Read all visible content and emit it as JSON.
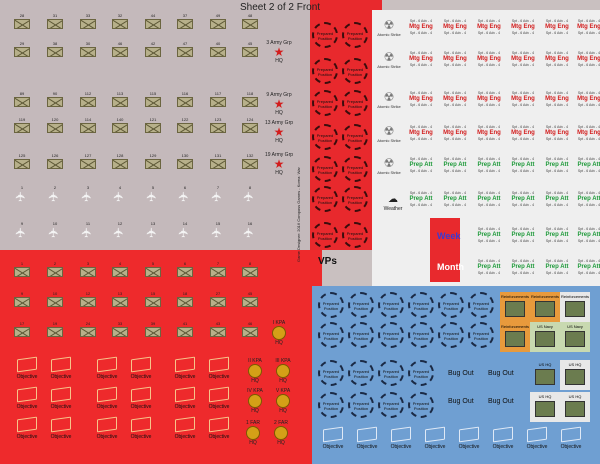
{
  "sheet_title": "Sheet 2 of 2 Front",
  "unit_rows": [
    {
      "numbers": [
        "28",
        "31",
        "33",
        "32",
        "44",
        "37",
        "49",
        "48"
      ]
    },
    {
      "numbers": [
        "29",
        "38",
        "30",
        "46",
        "42",
        "47",
        "40",
        "45"
      ]
    },
    {
      "numbers": [
        "89",
        "90",
        "112",
        "113",
        "115",
        "116",
        "117",
        "118"
      ]
    },
    {
      "numbers": [
        "119",
        "120",
        "114",
        "140",
        "121",
        "122",
        "123",
        "124"
      ]
    },
    {
      "numbers": [
        "125",
        "126",
        "127",
        "128",
        "129",
        "130",
        "131",
        "132"
      ]
    }
  ],
  "army_hqs": [
    {
      "label": "3 Army Grp",
      "sub": "HQ"
    },
    {
      "label": "9 Army Grp",
      "sub": "HQ"
    },
    {
      "label": "13 Army Grp",
      "sub": "HQ"
    },
    {
      "label": "19 Army Grp",
      "sub": "HQ"
    }
  ],
  "air_rows": [
    {
      "numbers": [
        "1",
        "2",
        "3",
        "4",
        "5",
        "6",
        "7",
        "8"
      ]
    },
    {
      "numbers": [
        "9",
        "10",
        "11",
        "12",
        "13",
        "14",
        "15",
        "16"
      ]
    }
  ],
  "kpa_rows": [
    {
      "numbers": [
        "1",
        "2",
        "3",
        "4",
        "5",
        "6",
        "7",
        "8"
      ]
    },
    {
      "numbers": [
        "9",
        "10",
        "12",
        "13",
        "15",
        "18",
        "27",
        "45"
      ]
    },
    {
      "numbers": [
        "17",
        "19",
        "24",
        "33",
        "39",
        "41",
        "43",
        "46"
      ]
    }
  ],
  "kpa_hqs": [
    {
      "label": "I KPA",
      "sub": "HQ"
    },
    {
      "label": "II KPA",
      "sub": "HQ"
    },
    {
      "label": "III KPA",
      "sub": "HQ"
    },
    {
      "label": "IV KPA",
      "sub": "HQ"
    },
    {
      "label": "V KPA",
      "sub": "HQ"
    },
    {
      "label": "1 FAR",
      "sub": "HQ"
    },
    {
      "label": "2 FAR",
      "sub": "HQ"
    }
  ],
  "prepared": {
    "line1": "Prepared",
    "line2": "Position"
  },
  "atomic_label": "Atomic Strike",
  "weather_label": "Weather",
  "mtg_eng": "Mtg Eng",
  "prep_att": "Prep Att",
  "marker_small": "Spt - 6  Adv - 4",
  "vps": "VPs",
  "week": "Week",
  "month": "Month",
  "objective": "Objective",
  "bug_out": "Bug Out",
  "reinforcements": "Reinforcements",
  "us_navy": "US Navy",
  "us_hq": "US HQ",
  "copyright": "Game Designer: 2016 Compass Games - Korea: War"
}
